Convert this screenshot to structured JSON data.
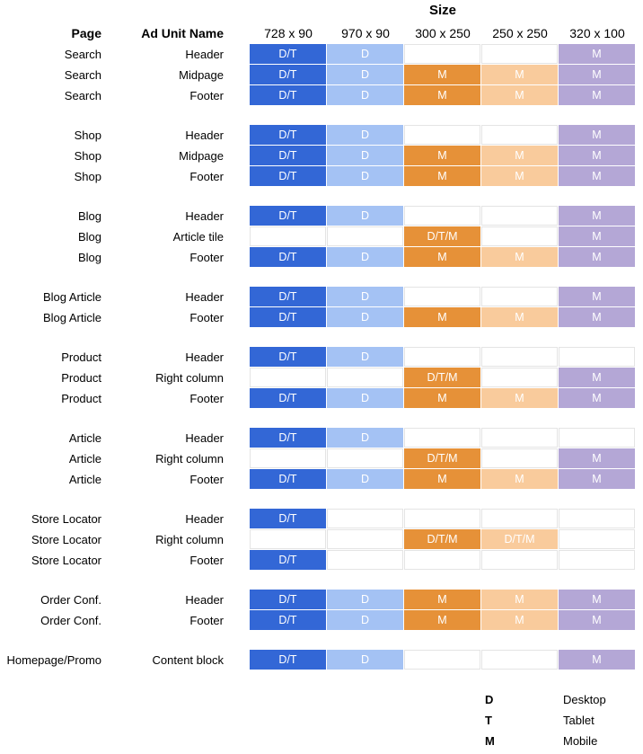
{
  "title": "Size",
  "headers": {
    "page": "Page",
    "unit": "Ad Unit Name"
  },
  "sizes": [
    "728 x 90",
    "970 x 90",
    "300 x 250",
    "250 x 250",
    "320 x 100"
  ],
  "colors": {
    "DT_dark": "#3367d6",
    "D_light": "#a4c2f4",
    "M_orange": "#e69138",
    "M_peach": "#f9cb9c",
    "M_purple": "#b4a7d6"
  },
  "rows": [
    {
      "page": "Search",
      "unit": "Header",
      "cells": [
        "D/T",
        "D",
        "",
        "",
        "M"
      ]
    },
    {
      "page": "Search",
      "unit": "Midpage",
      "cells": [
        "D/T",
        "D",
        "M",
        "M",
        "M"
      ]
    },
    {
      "page": "Search",
      "unit": "Footer",
      "cells": [
        "D/T",
        "D",
        "M",
        "M",
        "M"
      ]
    },
    {
      "page": "Shop",
      "unit": "Header",
      "cells": [
        "D/T",
        "D",
        "",
        "",
        "M"
      ]
    },
    {
      "page": "Shop",
      "unit": "Midpage",
      "cells": [
        "D/T",
        "D",
        "M",
        "M",
        "M"
      ]
    },
    {
      "page": "Shop",
      "unit": "Footer",
      "cells": [
        "D/T",
        "D",
        "M",
        "M",
        "M"
      ]
    },
    {
      "page": "Blog",
      "unit": "Header",
      "cells": [
        "D/T",
        "D",
        "",
        "",
        "M"
      ]
    },
    {
      "page": "Blog",
      "unit": "Article tile",
      "cells": [
        "",
        "",
        "D/T/M",
        "",
        "M"
      ]
    },
    {
      "page": "Blog",
      "unit": "Footer",
      "cells": [
        "D/T",
        "D",
        "M",
        "M",
        "M"
      ]
    },
    {
      "page": "Blog Article",
      "unit": "Header",
      "cells": [
        "D/T",
        "D",
        "",
        "",
        "M"
      ]
    },
    {
      "page": "Blog Article",
      "unit": "Footer",
      "cells": [
        "D/T",
        "D",
        "M",
        "M",
        "M"
      ]
    },
    {
      "page": "Product",
      "unit": "Header",
      "cells": [
        "D/T",
        "D",
        "",
        "",
        ""
      ]
    },
    {
      "page": "Product",
      "unit": "Right column",
      "cells": [
        "",
        "",
        "D/T/M",
        "",
        "M"
      ]
    },
    {
      "page": "Product",
      "unit": "Footer",
      "cells": [
        "D/T",
        "D",
        "M",
        "M",
        "M"
      ]
    },
    {
      "page": "Article",
      "unit": "Header",
      "cells": [
        "D/T",
        "D",
        "",
        "",
        ""
      ]
    },
    {
      "page": "Article",
      "unit": "Right column",
      "cells": [
        "",
        "",
        "D/T/M",
        "",
        "M"
      ]
    },
    {
      "page": "Article",
      "unit": "Footer",
      "cells": [
        "D/T",
        "D",
        "M",
        "M",
        "M"
      ]
    },
    {
      "page": "Store Locator",
      "unit": "Header",
      "cells": [
        "D/T",
        "",
        "",
        "",
        ""
      ]
    },
    {
      "page": "Store Locator",
      "unit": "Right column",
      "cells": [
        "",
        "",
        "D/T/M",
        "D/T/M",
        ""
      ]
    },
    {
      "page": "Store Locator",
      "unit": "Footer",
      "cells": [
        "D/T",
        "",
        "",
        "",
        ""
      ]
    },
    {
      "page": "Order Conf.",
      "unit": "Header",
      "cells": [
        "D/T",
        "D",
        "M",
        "M",
        "M"
      ]
    },
    {
      "page": "Order Conf.",
      "unit": "Footer",
      "cells": [
        "D/T",
        "D",
        "M",
        "M",
        "M"
      ]
    },
    {
      "page": "Homepage/Promo",
      "unit": "Content block",
      "cells": [
        "D/T",
        "D",
        "",
        "",
        "M"
      ]
    }
  ],
  "legend": [
    {
      "code": "D",
      "label": "Desktop"
    },
    {
      "code": "T",
      "label": "Tablet"
    },
    {
      "code": "M",
      "label": "Mobile"
    }
  ]
}
